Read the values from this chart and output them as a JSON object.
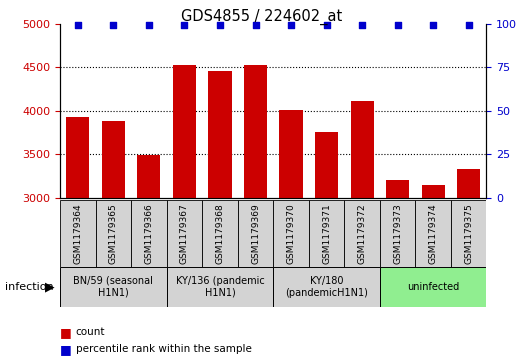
{
  "title": "GDS4855 / 224602_at",
  "samples": [
    "GSM1179364",
    "GSM1179365",
    "GSM1179366",
    "GSM1179367",
    "GSM1179368",
    "GSM1179369",
    "GSM1179370",
    "GSM1179371",
    "GSM1179372",
    "GSM1179373",
    "GSM1179374",
    "GSM1179375"
  ],
  "counts": [
    3930,
    3880,
    3490,
    4520,
    4460,
    4520,
    4010,
    3760,
    4110,
    3210,
    3150,
    3330
  ],
  "percentiles": [
    99,
    99,
    99,
    99,
    99,
    99,
    99,
    99,
    99,
    99,
    99,
    99
  ],
  "bar_color": "#cc0000",
  "dot_color": "#0000cc",
  "ylim_left": [
    3000,
    5000
  ],
  "ylim_right": [
    0,
    100
  ],
  "yticks_left": [
    3000,
    3500,
    4000,
    4500,
    5000
  ],
  "yticks_right": [
    0,
    25,
    50,
    75,
    100
  ],
  "grid_ticks": [
    3500,
    4000,
    4500
  ],
  "groups": [
    {
      "label": "BN/59 (seasonal\nH1N1)",
      "start": 0,
      "end": 3,
      "color": "#d3d3d3"
    },
    {
      "label": "KY/136 (pandemic\nH1N1)",
      "start": 3,
      "end": 6,
      "color": "#d3d3d3"
    },
    {
      "label": "KY/180\n(pandemicH1N1)",
      "start": 6,
      "end": 9,
      "color": "#d3d3d3"
    },
    {
      "label": "uninfected",
      "start": 9,
      "end": 12,
      "color": "#90ee90"
    }
  ],
  "infection_label": "infection",
  "legend_count_label": "count",
  "legend_percentile_label": "percentile rank within the sample",
  "background_color": "#ffffff",
  "left_tick_color": "#cc0000",
  "right_tick_color": "#0000cc",
  "sample_box_color": "#d3d3d3"
}
